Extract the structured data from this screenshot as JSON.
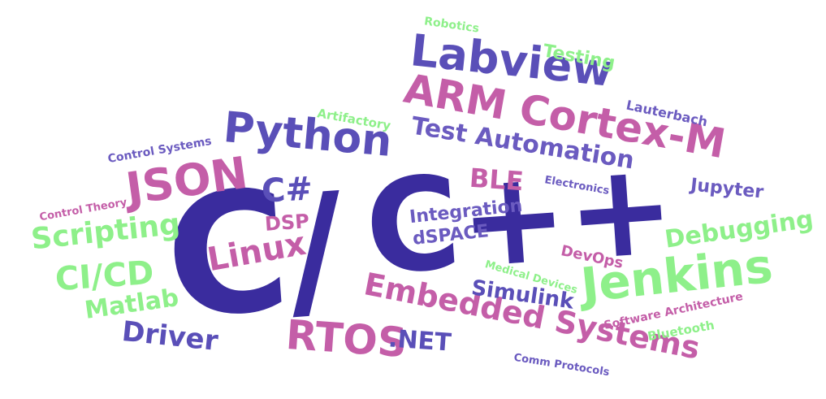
{
  "words": {
    "c": "C",
    "c_plus_plus": "C++",
    "slash": "/",
    "labview": "Labview",
    "arm_cortex_m": "ARM Cortex-M",
    "python": "Python",
    "json": "JSON",
    "csharp": "C#",
    "test_automation": "Test Automation",
    "ble": "BLE",
    "jenkins": "Jenkins",
    "embedded_systems": "Embedded Systems",
    "rtos": "RTOS",
    "dotnet": ".NET",
    "linux": "Linux",
    "scripting": "Scripting",
    "ci_cd": "CI/CD",
    "matlab": "Matlab",
    "driver": "Driver",
    "dsp": "DSP",
    "debugging": "Debugging",
    "simulink": "Simulink",
    "integration": "Integration",
    "dspace": "dSPACE",
    "devops": "DevOps",
    "medical_devices": "Medical Devices",
    "software_architecture": "Software Architecture",
    "bluetooth": "Bluetooth",
    "comm_protocols": "Comm Protocols",
    "jupyter": "Jupyter",
    "electronics": "Electronics",
    "lauterbach": "Lauterbach",
    "artifactory": "Artifactory",
    "control_systems": "Control Systems",
    "control_theory": "Control Theory",
    "robotics": "Robotics",
    "testing": "Testing"
  },
  "colors": {
    "indigo": "#3a2c9e",
    "violet": "#5a4fb8",
    "pink": "#c45ea8",
    "green": "#8ef08a"
  }
}
